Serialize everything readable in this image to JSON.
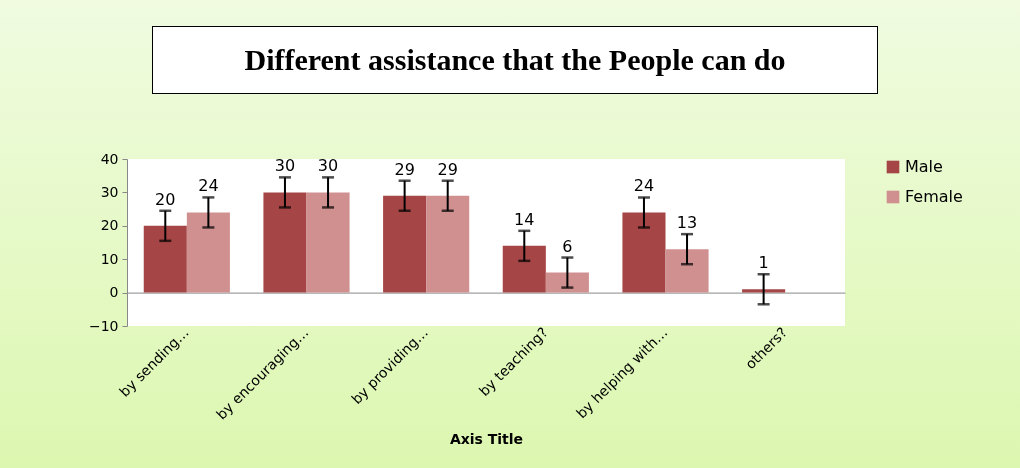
{
  "chart_data": {
    "type": "bar",
    "title": "Different assistance that the People can do",
    "xlabel": "Axis Title",
    "categories": [
      "by sending…",
      "by encouraging…",
      "by providing…",
      "by teaching?",
      "by helping with…",
      "others?"
    ],
    "series": [
      {
        "name": "Male",
        "color": "#a64545",
        "values": [
          20,
          30,
          29,
          14,
          24,
          1
        ],
        "errors": [
          4.5,
          4.5,
          4.5,
          4.5,
          4.5,
          4.5
        ]
      },
      {
        "name": "Female",
        "color": "#d09090",
        "values": [
          24,
          30,
          29,
          6,
          13,
          null
        ],
        "errors": [
          4.5,
          4.5,
          4.5,
          4.5,
          4.5,
          null
        ]
      }
    ],
    "ylim": [
      -10,
      40
    ],
    "yticks": [
      -10,
      0,
      10,
      20,
      30,
      40
    ],
    "data_labels": true,
    "legend": "right"
  }
}
